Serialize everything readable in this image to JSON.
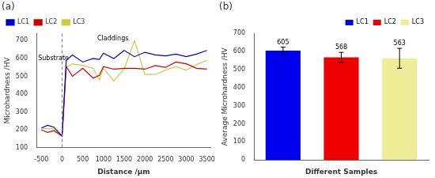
{
  "chart_data": [
    {
      "type": "line",
      "title": "(a)",
      "xlabel": "Distance /μm",
      "ylabel": "Microhardness /HV",
      "xlim": [
        -620,
        3600
      ],
      "xticks": [
        -500,
        0,
        500,
        1000,
        1500,
        2000,
        2500,
        3000,
        3500
      ],
      "ylim": [
        100,
        740
      ],
      "yticks": [
        100,
        200,
        300,
        400,
        500,
        600,
        700
      ],
      "x": [
        -500,
        -350,
        -200,
        0,
        100,
        250,
        500,
        750,
        900,
        1000,
        1250,
        1500,
        1750,
        2000,
        2250,
        2500,
        2750,
        3000,
        3250,
        3500
      ],
      "series": [
        {
          "name": "LC1",
          "color": "#0000cc",
          "values": [
            210,
            225,
            215,
            165,
            590,
            620,
            580,
            600,
            595,
            630,
            600,
            645,
            610,
            635,
            620,
            615,
            625,
            610,
            625,
            645
          ]
        },
        {
          "name": "LC2",
          "color": "#cc0000",
          "values": [
            200,
            185,
            195,
            165,
            555,
            500,
            545,
            490,
            505,
            555,
            540,
            545,
            545,
            540,
            560,
            550,
            580,
            570,
            545,
            540
          ]
        },
        {
          "name": "LC3",
          "color": "#cccc44",
          "values": [
            210,
            205,
            205,
            165,
            550,
            570,
            560,
            545,
            480,
            545,
            475,
            540,
            700,
            510,
            510,
            535,
            555,
            535,
            565,
            590
          ]
        }
      ],
      "vline": 0,
      "annotations": [
        {
          "text": "Substrate",
          "x": -580,
          "y": 590
        },
        {
          "text": "Claddings",
          "x": 850,
          "y": 700
        }
      ],
      "legend": "upper left",
      "grid": false
    },
    {
      "type": "bar",
      "title": "(b)",
      "xlabel": "Different Samples",
      "ylabel": "Average Microhardness /HV",
      "categories": [
        "LC1",
        "LC2",
        "LC3"
      ],
      "values": [
        605,
        568,
        563
      ],
      "errors": [
        20,
        28,
        55
      ],
      "colors": [
        "#0000ee",
        "#ee0000",
        "#eeee99"
      ],
      "ylim": [
        0,
        700
      ],
      "yticks": [
        0,
        100,
        200,
        300,
        400,
        500,
        600,
        700
      ],
      "legend": "upper right",
      "data_labels": true,
      "tick_labels": "y",
      "grid": false
    }
  ]
}
